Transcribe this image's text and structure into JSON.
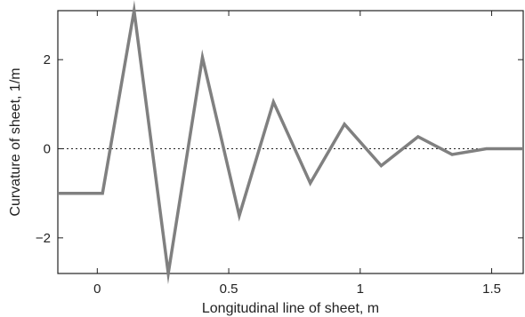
{
  "chart_data": {
    "type": "line",
    "xlabel": "Longitudinal line of sheet, m",
    "ylabel": "Curvature of sheet, 1/m",
    "xlim": [
      -0.15,
      1.62
    ],
    "ylim": [
      -2.8,
      3.1
    ],
    "xticks": [
      0,
      0.5,
      1,
      1.5
    ],
    "xtick_labels": [
      "0",
      "0.5",
      "1",
      "1.5"
    ],
    "yticks": [
      -2,
      0,
      2
    ],
    "ytick_labels": [
      "−2",
      "0",
      "2"
    ],
    "grid": false,
    "reference_line": {
      "y": 0,
      "style": "dotted"
    },
    "series": [
      {
        "color": "#808080",
        "x": [
          -0.15,
          0.02,
          0.14,
          0.27,
          0.4,
          0.54,
          0.67,
          0.81,
          0.94,
          1.08,
          1.22,
          1.35,
          1.48,
          1.62
        ],
        "y": [
          -1.0,
          -1.0,
          3.1,
          -2.8,
          2.05,
          -1.5,
          1.05,
          -0.77,
          0.55,
          -0.38,
          0.27,
          -0.13,
          0.0,
          0.0
        ]
      }
    ]
  }
}
